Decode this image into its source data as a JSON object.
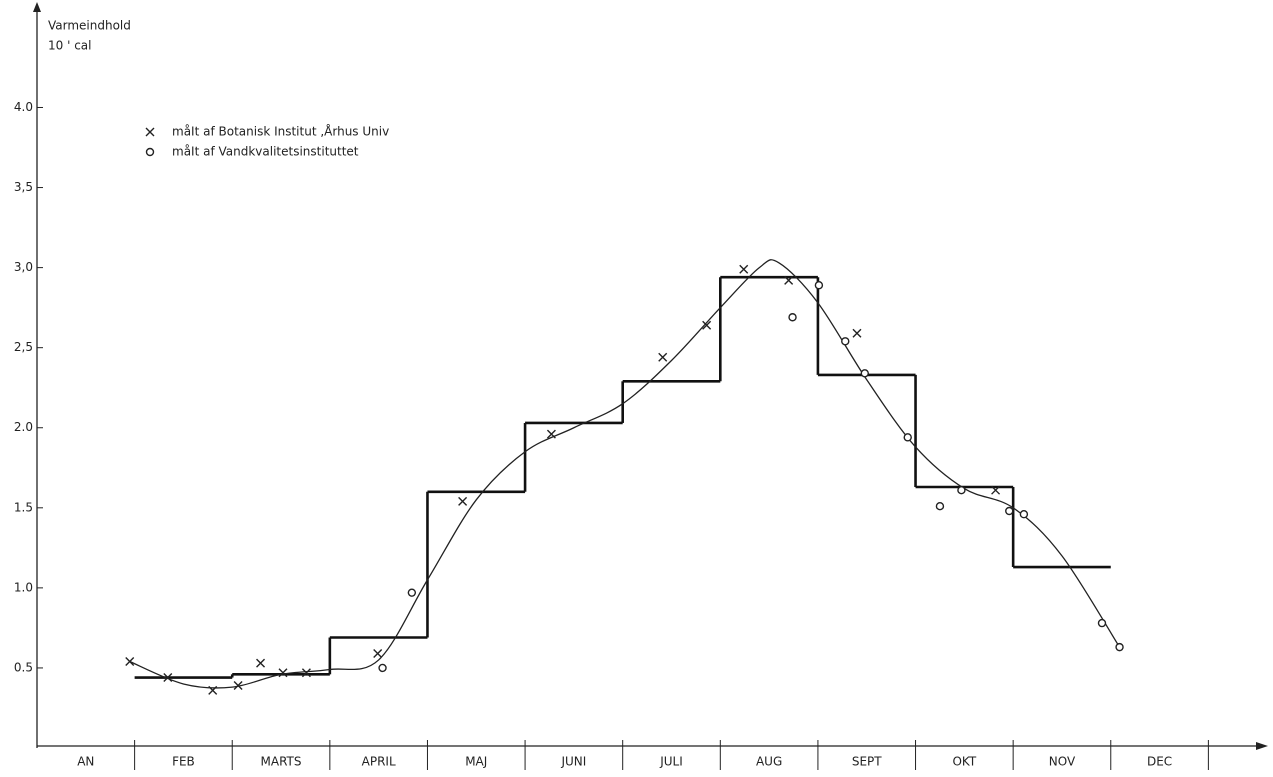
{
  "chart_data": {
    "type": "scatter",
    "y_label": [
      "Varmeindhold",
      "10 ' cal"
    ],
    "categories": [
      "AN",
      "FEB",
      "MARTS",
      "APRIL",
      "MAJ",
      "JUNI",
      "JULI",
      "AUG",
      "SEPT",
      "OKT",
      "NOV",
      "DEC"
    ],
    "xlim": [
      0,
      12.58
    ],
    "xticks": [
      1,
      2,
      3,
      4,
      5,
      6,
      7,
      8,
      9,
      10,
      11,
      12
    ],
    "ylim": [
      0,
      4.64
    ],
    "yticks": [
      {
        "value": 0.5,
        "label": "0.5"
      },
      {
        "value": 1.0,
        "label": "1.0"
      },
      {
        "value": 1.5,
        "label": "1.5"
      },
      {
        "value": 2.0,
        "label": "2.0"
      },
      {
        "value": 2.5,
        "label": "2,5"
      },
      {
        "value": 3.0,
        "label": "3,0"
      },
      {
        "value": 3.5,
        "label": "3,5"
      },
      {
        "value": 4.0,
        "label": "4.0"
      }
    ],
    "steps": {
      "bins": [
        1,
        2,
        3,
        4,
        5,
        6,
        7,
        8,
        9,
        10,
        11
      ],
      "values": [
        0.44,
        0.46,
        0.69,
        1.6,
        2.03,
        2.29,
        2.94,
        2.33,
        1.63,
        1.13
      ],
      "color": "#111"
    },
    "curve": {
      "x": [
        0.95,
        1.5,
        2.0,
        2.5,
        3.0,
        3.5,
        4.0,
        4.5,
        5.0,
        5.5,
        6.0,
        6.5,
        7.0,
        7.4,
        7.6,
        8.0,
        8.5,
        9.0,
        9.5,
        10.0,
        10.5,
        11.09
      ],
      "values": [
        0.54,
        0.4,
        0.38,
        0.46,
        0.49,
        0.55,
        1.05,
        1.55,
        1.85,
        2.0,
        2.15,
        2.42,
        2.75,
        3.0,
        3.03,
        2.78,
        2.3,
        1.88,
        1.62,
        1.5,
        1.2,
        0.63
      ],
      "color": "#222"
    },
    "series": [
      {
        "name": "måIt af  Botanisk Institut ,Århus Univ",
        "marker": "x",
        "color": "#222",
        "x": [
          0.95,
          1.34,
          1.8,
          2.06,
          2.29,
          2.52,
          2.76,
          3.49,
          4.36,
          5.27,
          6.41,
          6.86,
          7.24,
          7.7,
          8.4,
          9.82
        ],
        "values": [
          0.54,
          0.44,
          0.36,
          0.39,
          0.53,
          0.47,
          0.47,
          0.59,
          1.54,
          1.96,
          2.44,
          2.64,
          2.99,
          2.92,
          2.59,
          1.61
        ]
      },
      {
        "name": "måIt af  Vandkvalitetsinstituttet",
        "marker": "o",
        "color": "#222",
        "x": [
          3.54,
          3.84,
          7.74,
          8.01,
          8.28,
          8.48,
          8.92,
          9.25,
          9.47,
          9.96,
          10.11,
          10.91,
          11.09
        ],
        "values": [
          0.5,
          0.97,
          2.69,
          2.89,
          2.54,
          2.34,
          1.94,
          1.51,
          1.61,
          1.48,
          1.46,
          0.78,
          0.63
        ]
      }
    ]
  }
}
